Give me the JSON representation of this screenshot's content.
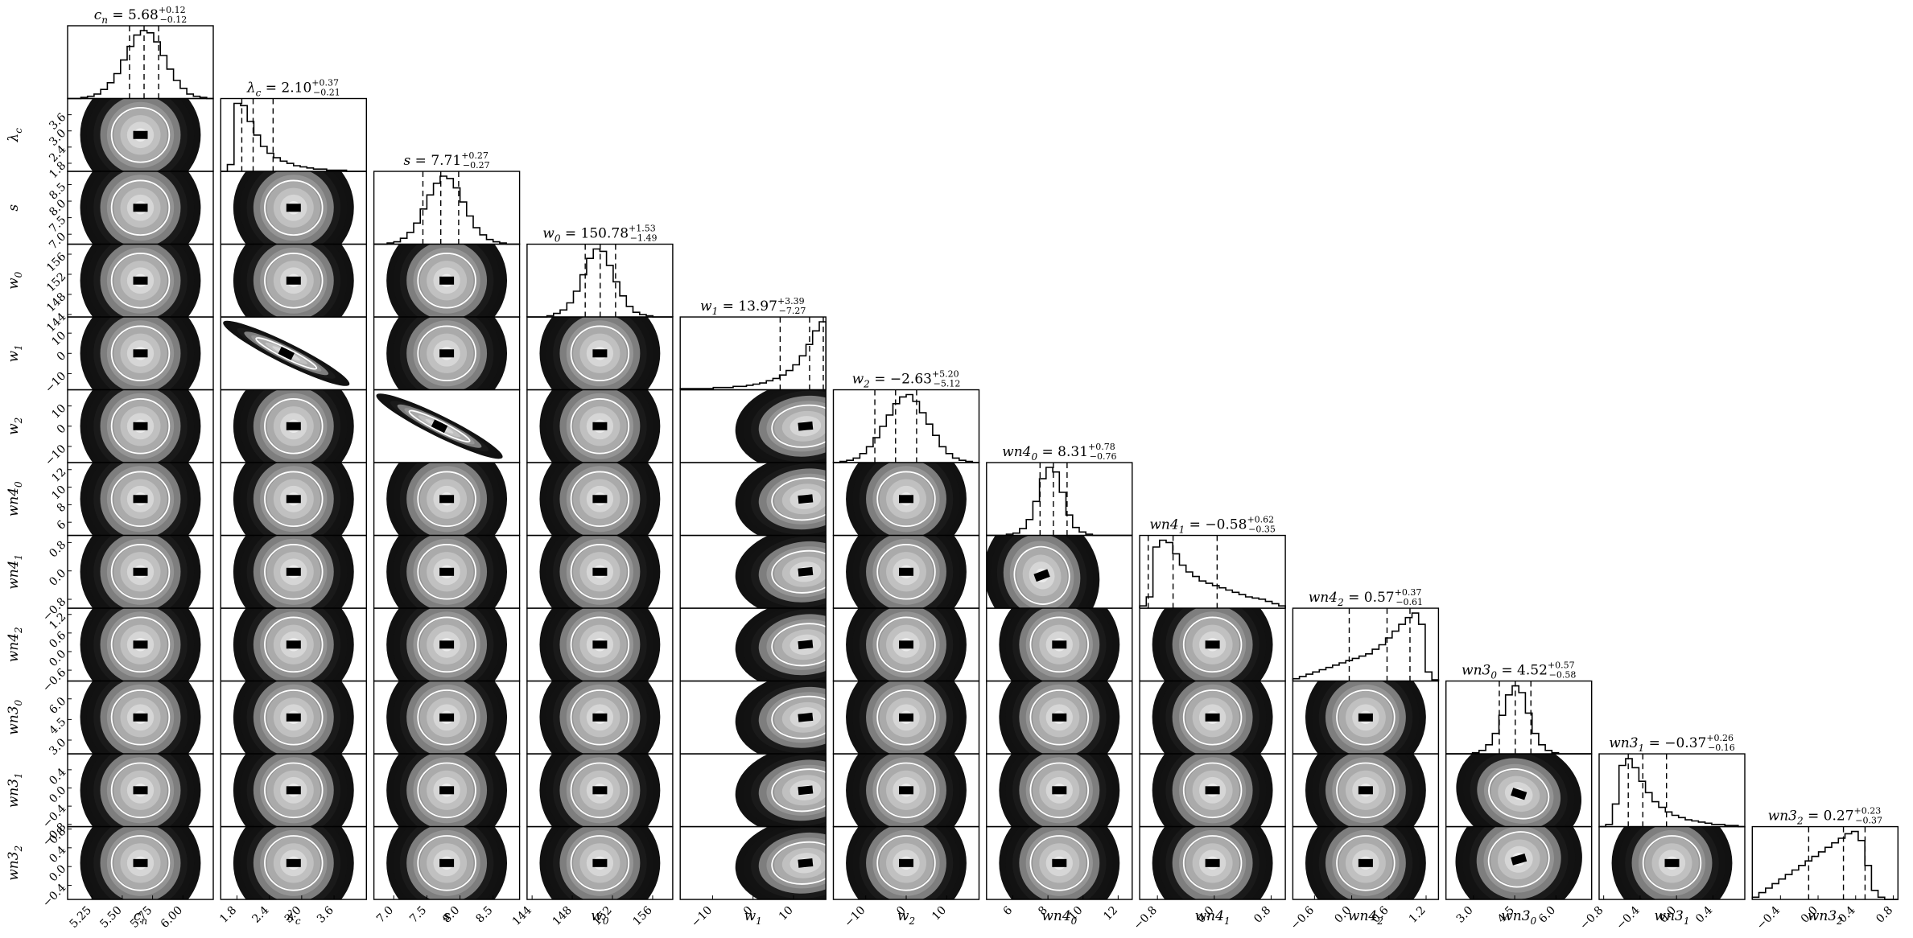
{
  "chart_data": {
    "type": "corner",
    "parameters": [
      {
        "label": "c_n",
        "title": "c_n = 5.68^{+0.12}_{-0.12}",
        "median": 5.68,
        "plus": 0.12,
        "minus": 0.12,
        "range": [
          5.05,
          6.25
        ],
        "ticks": [
          "5.25",
          "5.50",
          "5.75",
          "6.00"
        ],
        "tickvals": [
          5.25,
          5.5,
          5.75,
          6.0
        ],
        "hist": [
          0,
          0,
          1,
          2,
          4,
          8,
          14,
          22,
          34,
          46,
          56,
          60,
          58,
          50,
          38,
          26,
          16,
          9,
          4,
          2,
          1,
          0
        ],
        "bimodal": false
      },
      {
        "label": "λ_c",
        "title": "λ_c = 2.10^{+0.37}_{-0.21}",
        "median": 2.1,
        "plus": 0.37,
        "minus": 0.21,
        "range": [
          1.5,
          4.2
        ],
        "ticks": [
          "1.8",
          "2.4",
          "3.0",
          "3.6"
        ],
        "tickvals": [
          1.8,
          2.4,
          3.0,
          3.6
        ],
        "hist": [
          0,
          6,
          60,
          58,
          44,
          32,
          22,
          16,
          12,
          9,
          7,
          5,
          4,
          3,
          2,
          2,
          1,
          1,
          1,
          0,
          0,
          0
        ],
        "bimodal": false
      },
      {
        "label": "s",
        "title": "s = 7.71^{+0.27}_{-0.27}",
        "median": 7.71,
        "plus": 0.27,
        "minus": 0.27,
        "range": [
          6.7,
          8.9
        ],
        "ticks": [
          "7.0",
          "7.5",
          "8.0",
          "8.5"
        ],
        "tickvals": [
          7.0,
          7.5,
          8.0,
          8.5
        ],
        "hist": [
          0,
          0,
          1,
          2,
          5,
          10,
          18,
          30,
          42,
          52,
          58,
          56,
          48,
          36,
          24,
          14,
          8,
          4,
          2,
          1,
          0,
          0
        ],
        "bimodal": false
      },
      {
        "label": "w_0",
        "title": "w_0 = 150.78^{+1.53}_{-1.49}",
        "median": 150.78,
        "plus": 1.53,
        "minus": 1.49,
        "range": [
          143.5,
          158
        ],
        "ticks": [
          "144",
          "148",
          "152",
          "156"
        ],
        "tickvals": [
          144,
          148,
          152,
          156
        ],
        "hist": [
          0,
          0,
          0,
          1,
          3,
          6,
          12,
          22,
          36,
          50,
          58,
          56,
          44,
          30,
          18,
          9,
          4,
          2,
          1,
          0,
          0,
          0
        ],
        "bimodal": false
      },
      {
        "label": "w_1",
        "title": "w_1 = 13.97^{+3.39}_{-7.27}",
        "median": 13.97,
        "plus": 3.39,
        "minus": 7.27,
        "range": [
          -18,
          18
        ],
        "ticks": [
          "-10",
          "0",
          "10"
        ],
        "tickvals": [
          -10,
          0,
          10
        ],
        "hist": [
          1,
          1,
          1,
          1,
          1,
          2,
          2,
          2,
          3,
          3,
          4,
          5,
          6,
          8,
          10,
          13,
          17,
          22,
          30,
          40,
          52,
          60
        ],
        "bimodal": false
      },
      {
        "label": "w_2",
        "title": "w_2 = -2.63^{+5.20}_{-5.12}",
        "median": -2.63,
        "plus": 5.2,
        "minus": 5.12,
        "range": [
          -18,
          18
        ],
        "ticks": [
          "-10",
          "0",
          "10"
        ],
        "tickvals": [
          -10,
          0,
          10
        ],
        "hist": [
          0,
          1,
          2,
          4,
          8,
          14,
          22,
          32,
          42,
          52,
          58,
          60,
          54,
          44,
          34,
          24,
          14,
          8,
          4,
          2,
          1,
          0
        ],
        "bimodal": false
      },
      {
        "label": "wn4_0",
        "title": "wn4_0 = 8.31^{+0.78}_{-0.76}",
        "median": 8.31,
        "plus": 0.78,
        "minus": 0.76,
        "range": [
          4.5,
          12.8
        ],
        "ticks": [
          "6",
          "8",
          "10",
          "12"
        ],
        "tickvals": [
          6,
          8,
          10,
          12
        ],
        "hist": [
          0,
          0,
          0,
          1,
          2,
          6,
          14,
          30,
          50,
          60,
          56,
          38,
          18,
          7,
          3,
          1,
          0,
          0,
          0,
          0,
          0,
          0
        ],
        "bimodal": false
      },
      {
        "label": "wn4_1",
        "title": "wn4_1 = -0.58^{+0.62}_{-0.35}",
        "median": -0.58,
        "plus": 0.62,
        "minus": 0.35,
        "range": [
          -1.05,
          1.0
        ],
        "ticks": [
          "-0.8",
          "0.0",
          "0.8"
        ],
        "tickvals": [
          -0.8,
          0.0,
          0.8
        ],
        "hist": [
          2,
          10,
          54,
          60,
          58,
          48,
          38,
          32,
          28,
          24,
          22,
          20,
          18,
          16,
          14,
          12,
          10,
          9,
          8,
          6,
          4,
          2
        ],
        "bimodal": false
      },
      {
        "label": "wn4_2",
        "title": "wn4_2 = 0.57^{+0.37}_{-0.61}",
        "median": 0.57,
        "plus": 0.37,
        "minus": 0.61,
        "range": [
          -0.95,
          1.4
        ],
        "ticks": [
          "-0.6",
          "0.0",
          "0.6",
          "1.2"
        ],
        "tickvals": [
          -0.6,
          0.0,
          0.6,
          1.2
        ],
        "hist": [
          2,
          4,
          6,
          8,
          10,
          12,
          14,
          16,
          18,
          20,
          22,
          24,
          28,
          32,
          38,
          44,
          50,
          56,
          60,
          50,
          8,
          1
        ],
        "bimodal": false
      },
      {
        "label": "wn3_0",
        "title": "wn3_0 = 4.52^{+0.57}_{-0.58}",
        "median": 4.52,
        "plus": 0.57,
        "minus": 0.58,
        "range": [
          2.0,
          7.3
        ],
        "ticks": [
          "3.0",
          "4.5",
          "6.0"
        ],
        "tickvals": [
          3.0,
          4.5,
          6.0
        ],
        "hist": [
          0,
          0,
          0,
          0,
          1,
          3,
          8,
          18,
          34,
          52,
          60,
          54,
          36,
          18,
          8,
          3,
          1,
          0,
          0,
          0,
          0,
          0
        ],
        "bimodal": false
      },
      {
        "label": "wn3_1",
        "title": "wn3_1 = -0.37^{+0.26}_{-0.16}",
        "median": -0.37,
        "plus": 0.26,
        "minus": 0.16,
        "range": [
          -0.85,
          0.75
        ],
        "ticks": [
          "-0.8",
          "-0.4",
          "0.0",
          "0.4"
        ],
        "tickvals": [
          -0.8,
          -0.4,
          0.0,
          0.4
        ],
        "hist": [
          0,
          2,
          20,
          54,
          60,
          52,
          40,
          30,
          22,
          17,
          13,
          10,
          8,
          6,
          5,
          4,
          3,
          2,
          2,
          1,
          1,
          0
        ],
        "bimodal": false
      },
      {
        "label": "wn3_2",
        "title": "wn3_2 = 0.27^{+0.23}_{-0.37}",
        "median": 0.27,
        "plus": 0.23,
        "minus": 0.37,
        "range": [
          -0.7,
          0.85
        ],
        "ticks": [
          "-0.4",
          "0.0",
          "0.4",
          "0.8"
        ],
        "tickvals": [
          -0.4,
          0.0,
          0.4,
          0.8
        ],
        "hist": [
          2,
          6,
          10,
          14,
          18,
          22,
          26,
          30,
          34,
          38,
          42,
          46,
          50,
          54,
          58,
          60,
          52,
          30,
          8,
          2,
          0,
          0
        ],
        "bimodal": false
      }
    ],
    "quantiles": [
      0.16,
      0.5,
      0.84
    ],
    "shading": "grayscale-2d-density"
  }
}
